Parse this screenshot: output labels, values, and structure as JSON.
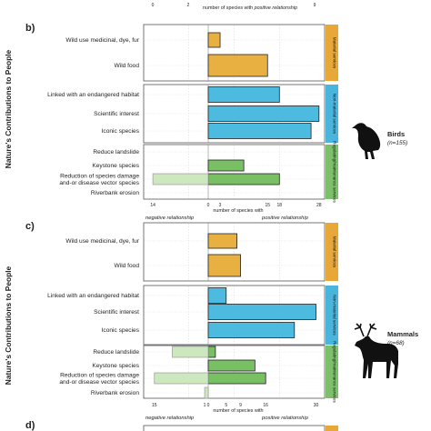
{
  "figure": {
    "y_axis_title": "Nature's Contributions to People",
    "top_axis": {
      "ticks": [
        "0",
        "2",
        "9"
      ],
      "label_plain": "number of species with",
      "label_italic": "positive relationship"
    },
    "colors": {
      "material": "#E8B040",
      "non_material": "#4DBADF",
      "regulating_positive": "#79C064",
      "regulating_negative": "#CDE7BE",
      "strip_material": "#E8A838",
      "strip_non_material": "#4AB5DC",
      "strip_regulating": "#7CC06A"
    }
  },
  "chart_data": [
    {
      "type": "bar",
      "panel": "b)",
      "animal": "Birds",
      "sample": "(n=155)",
      "icon": "bird-silhouette-icon",
      "x_axis": {
        "ticks_negative": [
          "14"
        ],
        "ticks_positive": [
          "0",
          "3",
          "15",
          "18",
          "28"
        ],
        "label": "number of species with",
        "negative_label": "negative relationship",
        "positive_label": "positive relationship"
      },
      "groups": [
        {
          "strip": "Material services",
          "kind": "material",
          "categories": [
            "Wild use medicinal, dye, fur",
            "Wild food"
          ],
          "positive": [
            3,
            15
          ],
          "negative": [
            0,
            0
          ]
        },
        {
          "strip": "Non-material services",
          "kind": "non_material",
          "categories": [
            "Linked with an endangered habitat",
            "Scientific interest",
            "Iconic species"
          ],
          "positive": [
            18,
            28,
            26
          ],
          "negative": [
            0,
            0,
            0
          ]
        },
        {
          "strip": "Regulating/maintenance services",
          "kind": "regulating",
          "categories": [
            "Reduce landslide",
            "Keystone species",
            "Reduction of species damage\nand-or disease vector species",
            "Riverbank erosion"
          ],
          "positive": [
            0,
            9,
            18,
            0
          ],
          "negative": [
            0,
            0,
            14,
            0
          ]
        }
      ]
    },
    {
      "type": "bar",
      "panel": "c)",
      "animal": "Mammals",
      "sample": "(n=68)",
      "icon": "deer-silhouette-icon",
      "x_axis": {
        "ticks_negative": [
          "15",
          "1"
        ],
        "ticks_positive": [
          "0",
          "5",
          "9",
          "16",
          "30"
        ],
        "label": "number of species with",
        "negative_label": "negative relationship",
        "positive_label": "positive relationship"
      },
      "groups": [
        {
          "strip": "Material services",
          "kind": "material",
          "categories": [
            "Wild use medicinal, dye, fur",
            "Wild food"
          ],
          "positive": [
            8,
            9
          ],
          "negative": [
            0,
            0
          ]
        },
        {
          "strip": "Non-material services",
          "kind": "non_material",
          "categories": [
            "Linked with an endangered habitat",
            "Scientific interest",
            "Iconic species"
          ],
          "positive": [
            5,
            30,
            24
          ],
          "negative": [
            0,
            0,
            0
          ]
        },
        {
          "strip": "Regulating/maintenance services",
          "kind": "regulating",
          "categories": [
            "Reduce landslide",
            "Keystone species",
            "Reduction of species damage\nand-or disease vector species",
            "Riverbank erosion"
          ],
          "positive": [
            2,
            13,
            16,
            0
          ],
          "negative": [
            10,
            0,
            15,
            1
          ]
        }
      ]
    }
  ],
  "next_panel": {
    "panel": "d)"
  }
}
